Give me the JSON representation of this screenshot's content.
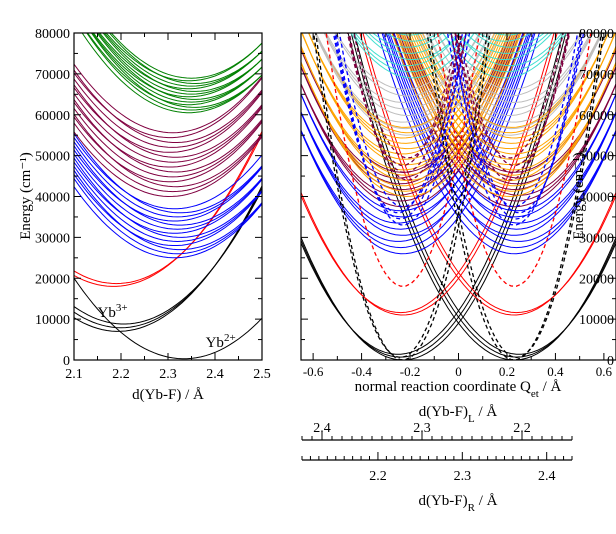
{
  "chart_data": [
    {
      "type": "line",
      "panel": "left",
      "xlabel": "d(Yb-F) / Å",
      "ylabel": "Energy (cm⁻¹)",
      "xlim": [
        2.1,
        2.5
      ],
      "ylim": [
        0,
        80000
      ],
      "xticks": [
        "2.1",
        "2.2",
        "2.3",
        "2.4",
        "2.5"
      ],
      "yticks": [
        "0",
        "10000",
        "20000",
        "30000",
        "40000",
        "50000",
        "60000",
        "70000",
        "80000"
      ],
      "annotations": [
        {
          "base": "Yb",
          "sup": "3+",
          "x": 2.15,
          "y": 10500
        },
        {
          "base": "Yb",
          "sup": "2+",
          "x": 2.38,
          "y": 3200
        }
      ],
      "groups": [
        {
          "name": "Yb3+ ground manifold",
          "color": "#000000",
          "count": 3,
          "spread": 900,
          "min_x": 2.2,
          "min_y": 7000,
          "coef": 380000
        },
        {
          "name": "Yb2+ ground manifold",
          "color": "#000000",
          "count": 1,
          "spread": 0,
          "min_x": 2.34,
          "min_y": 300,
          "coef": 360000
        },
        {
          "name": "Yb3+ excited (red)",
          "color": "#ff0000",
          "count": 2,
          "spread": 700,
          "min_x": 2.19,
          "min_y": 18000,
          "coef": 380000
        },
        {
          "name": "Yb2+ 4f-5d band (blue)",
          "color": "#0000ff",
          "count": 13,
          "spread": 1000,
          "min_x": 2.32,
          "min_y": 25000,
          "coef": 380000
        },
        {
          "name": "Yb2+ higher band (maroon)",
          "color": "#800040",
          "count": 14,
          "spread": 1200,
          "min_x": 2.31,
          "min_y": 40000,
          "coef": 380000
        },
        {
          "name": "Yb2+ top band (green)",
          "color": "#008000",
          "count": 14,
          "spread": 650,
          "min_x": 2.35,
          "min_y": 60500,
          "coef": 380000
        }
      ]
    },
    {
      "type": "line",
      "panel": "right",
      "xlabel": "normal reaction coordinate Q",
      "xlabel_sub": "et",
      "xlabel_tail": " / Å",
      "ylabel": "Energy (cm⁻¹)",
      "xlim": [
        -0.65,
        0.65
      ],
      "ylim": [
        0,
        80000
      ],
      "xticks": [
        "-0.6",
        "-0.4",
        "-0.2",
        "0",
        "0.2",
        "0.4",
        "0.6"
      ],
      "yticks": [
        "0",
        "10000",
        "20000",
        "30000",
        "40000",
        "50000",
        "60000",
        "70000",
        "80000"
      ],
      "groups": [
        {
          "name": "ground diabatic pair",
          "color": "#000000",
          "count": 3,
          "spread": 700,
          "min_q": 0.24,
          "min_y": 0,
          "coef": 170000,
          "style": "solid"
        },
        {
          "name": "red diabatic pair",
          "color": "#ff0000",
          "count": 2,
          "spread": 600,
          "min_q": 0.24,
          "min_y": 11000,
          "coef": 170000,
          "style": "solid"
        },
        {
          "name": "blue band",
          "color": "#0000ff",
          "count": 8,
          "spread": 1500,
          "min_q": 0.24,
          "min_y": 26000,
          "coef": 170000,
          "style": "solid"
        },
        {
          "name": "maroon band",
          "color": "#800040",
          "count": 7,
          "spread": 1400,
          "min_q": 0.24,
          "min_y": 37500,
          "coef": 170000,
          "style": "solid"
        },
        {
          "name": "orange band",
          "color": "#ffa500",
          "count": 14,
          "spread": 1300,
          "min_q": 0.22,
          "min_y": 40000,
          "coef": 170000,
          "style": "solid"
        },
        {
          "name": "grey band",
          "color": "#bebebe",
          "count": 8,
          "spread": 1600,
          "min_q": 0.22,
          "min_y": 55000,
          "coef": 170000,
          "style": "solid"
        },
        {
          "name": "cyan band",
          "color": "#40e0d0",
          "count": 10,
          "spread": 1500,
          "min_q": 0.2,
          "min_y": 69000,
          "coef": 170000,
          "style": "solid"
        },
        {
          "name": "dashed ground (steep)",
          "color": "#000000",
          "count": 2,
          "spread": 600,
          "min_q": 0.24,
          "min_y": 0,
          "coef": 620000,
          "style": "dashed"
        },
        {
          "name": "dashed red (steep)",
          "color": "#ff0000",
          "count": 1,
          "spread": 0,
          "min_q": 0.24,
          "min_y": 18000,
          "coef": 620000,
          "style": "dashed"
        },
        {
          "name": "dashed blue (steep)",
          "color": "#0000ff",
          "count": 4,
          "spread": 1500,
          "min_q": 0.24,
          "min_y": 33000,
          "coef": 620000,
          "style": "dashed"
        },
        {
          "name": "dashed maroon (steep)",
          "color": "#800040",
          "count": 4,
          "spread": 1800,
          "min_q": 0.22,
          "min_y": 44000,
          "coef": 620000,
          "style": "dashed"
        }
      ]
    },
    {
      "type": "axis",
      "panel": "bottom-scales",
      "top_label": "d(Yb-F)",
      "top_label_sub": "L",
      "top_label_tail": " / Å",
      "top_ticks": [
        "2.4",
        "2.3",
        "2.2"
      ],
      "bottom_label": "d(Yb-F)",
      "bottom_label_sub": "R",
      "bottom_label_tail": " / Å",
      "bottom_ticks": [
        "2.2",
        "2.3",
        "2.4"
      ]
    }
  ]
}
